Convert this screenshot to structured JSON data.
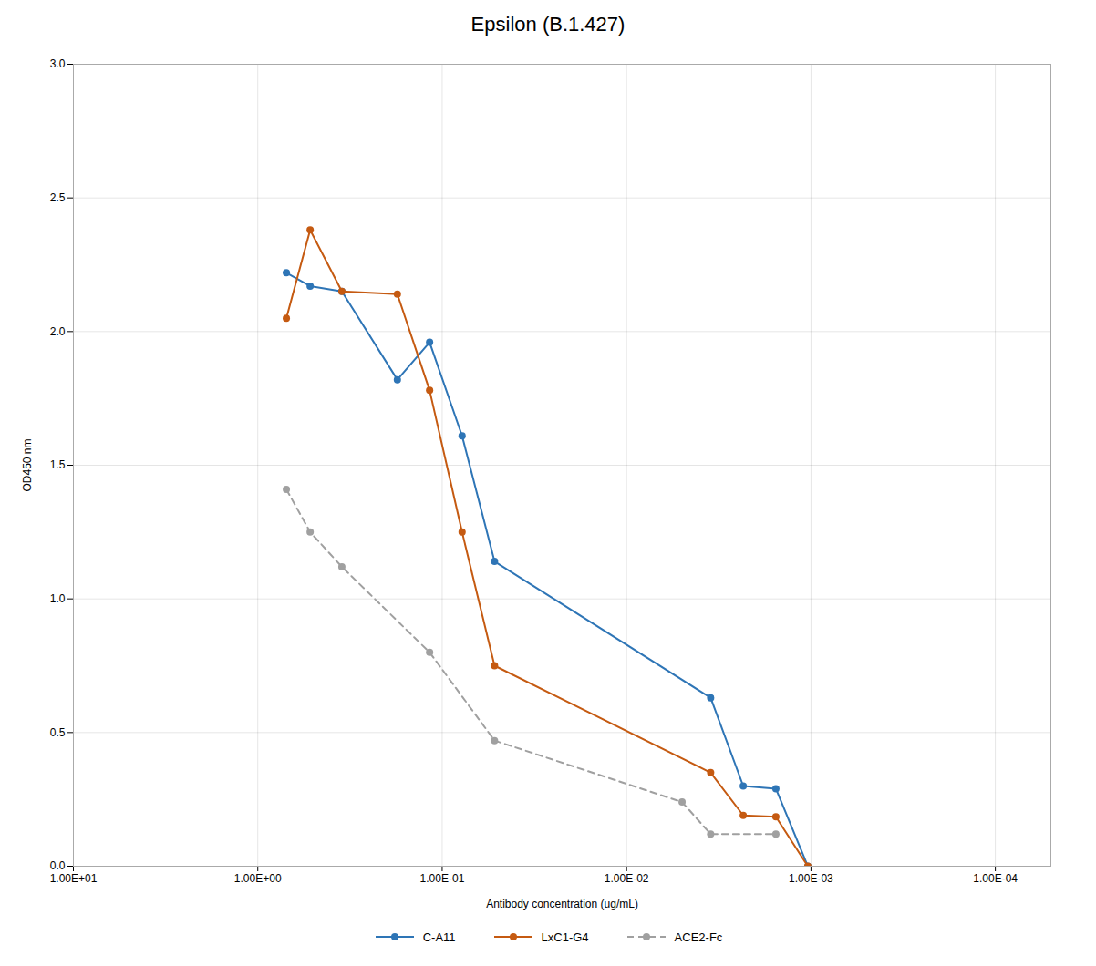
{
  "chart_data": {
    "type": "line",
    "title": "Epsilon (B.1.427)",
    "xlabel": "Antibody concentration (ug/mL)",
    "ylabel": "OD450 nm",
    "log": "x",
    "xlim": [
      10.0,
      5e-05
    ],
    "xticks": [
      {
        "value": 10,
        "label": "1.00E+01"
      },
      {
        "value": 1,
        "label": "1.00E+00"
      },
      {
        "value": 0.1,
        "label": "1.00E-01"
      },
      {
        "value": 0.01,
        "label": "1.00E-02"
      },
      {
        "value": 0.001,
        "label": "1.00E-03"
      },
      {
        "value": 0.0001,
        "label": "1.00E-04"
      }
    ],
    "ylim": [
      0,
      3.0
    ],
    "yticks": [
      {
        "value": 0,
        "label": "0.0"
      },
      0.5,
      {
        "value": 1.0,
        "label": "1.0"
      },
      1.5,
      {
        "value": 2.0,
        "label": "2.0"
      },
      2.5,
      {
        "value": 3.0,
        "label": "3.0"
      }
    ],
    "grid": true,
    "legend": "bottom",
    "series": [
      {
        "name": "C-A11",
        "color": "#2e75b6",
        "marker": "circle",
        "line_style": "solid",
        "x": [
          0.7,
          0.52,
          0.35,
          0.175,
          0.117,
          0.078,
          0.052,
          0.0035,
          0.00233,
          0.00155,
          0.00104
        ],
        "values": [
          2.22,
          2.17,
          2.15,
          1.82,
          1.96,
          1.61,
          1.14,
          0.63,
          0.3,
          0.29,
          0.0
        ]
      },
      {
        "name": "LxC1-G4",
        "color": "#c55a11",
        "marker": "circle",
        "line_style": "solid",
        "x": [
          0.7,
          0.52,
          0.35,
          0.175,
          0.117,
          0.078,
          0.052,
          0.0035,
          0.00233,
          0.00155,
          0.00104
        ],
        "values": [
          2.05,
          2.38,
          2.15,
          2.14,
          1.78,
          1.25,
          0.75,
          0.35,
          0.19,
          0.185,
          0.0
        ]
      },
      {
        "name": "ACE2-Fc",
        "color": "#a0a0a0",
        "marker": "circle",
        "line_style": "dashed",
        "x": [
          0.7,
          0.52,
          0.35,
          0.117,
          0.052,
          0.005,
          0.0035,
          0.00155
        ],
        "values": [
          1.41,
          1.25,
          1.12,
          0.8,
          0.47,
          0.24,
          0.12,
          0.12
        ]
      }
    ]
  }
}
